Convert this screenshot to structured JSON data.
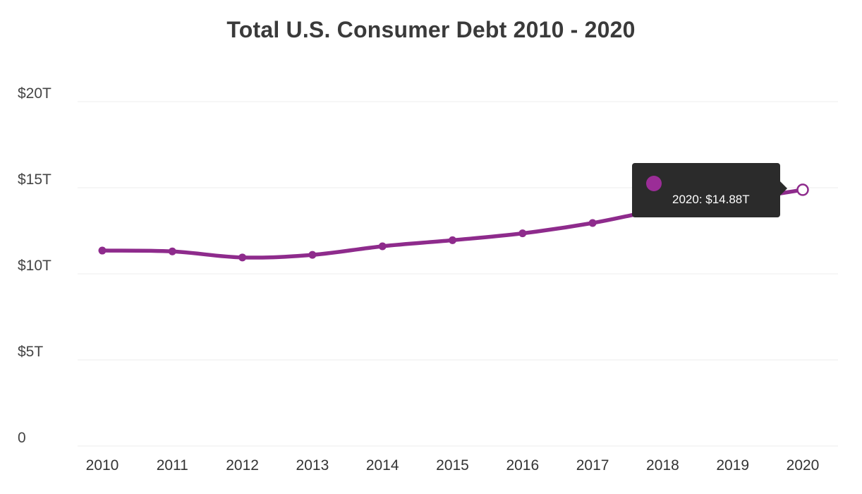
{
  "chart_data": {
    "type": "line",
    "title": "Total U.S. Consumer Debt 2010 - 2020",
    "xlabel": "",
    "ylabel": "",
    "x": [
      "2010",
      "2011",
      "2012",
      "2013",
      "2014",
      "2015",
      "2016",
      "2017",
      "2018",
      "2019",
      "2020"
    ],
    "series": [
      {
        "values": [
          11.35,
          11.3,
          10.95,
          11.1,
          11.6,
          11.95,
          12.35,
          12.95,
          13.75,
          14.25,
          14.88
        ]
      }
    ],
    "ylim": [
      0,
      20
    ],
    "yticks": [
      0,
      5,
      10,
      15,
      20
    ],
    "ytick_labels": [
      "0",
      "$5T",
      "$10T",
      "$15T",
      "$20T"
    ],
    "grid": true,
    "legend": "none",
    "colors": {
      "line": "#8e2b8c",
      "tooltip_bg": "#2b2b2b",
      "tooltip_marker": "#9b2d97",
      "grid": "#eeeeee"
    },
    "tooltip": {
      "text": "2020: $14.88T",
      "point_index": 10
    }
  }
}
